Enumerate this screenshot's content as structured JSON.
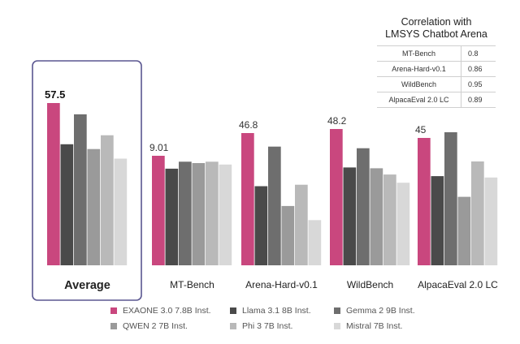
{
  "colors": {
    "exaone": "#c9477e",
    "llama": "#4a4a4a",
    "gemma": "#6e6e6e",
    "qwen": "#9a9a9a",
    "phi": "#b9b9b9",
    "mistral": "#d8d8d8",
    "highlight_box": "#5a5690"
  },
  "chart_data": {
    "type": "bar",
    "categories": [
      "Average",
      "MT-Bench",
      "Arena-Hard-v0.1",
      "WildBench",
      "AlpacaEval 2.0 LC"
    ],
    "highlighted_category": "Average",
    "series": [
      {
        "name": "EXAONE 3.0 7.8B Inst.",
        "key": "exaone",
        "values": [
          57.5,
          9.01,
          46.8,
          48.2,
          45
        ]
      },
      {
        "name": "Llama 3.1 8B Inst.",
        "key": "llama",
        "values": [
          42.9,
          7.95,
          28.0,
          34.6,
          31.5
        ]
      },
      {
        "name": "Gemma 2 9B Inst.",
        "key": "gemma",
        "values": [
          53.5,
          8.52,
          42.0,
          41.4,
          47.0
        ]
      },
      {
        "name": "QWEN 2 7B Inst.",
        "key": "qwen",
        "values": [
          41.2,
          8.41,
          21.0,
          34.3,
          24.2
        ]
      },
      {
        "name": "Phi 3 7B Inst.",
        "key": "phi",
        "values": [
          46.1,
          8.52,
          28.5,
          32.1,
          36.7
        ]
      },
      {
        "name": "Mistral 7B Inst.",
        "key": "mistral",
        "values": [
          37.8,
          8.29,
          16.0,
          29.2,
          31.0
        ]
      }
    ],
    "data_labels": [
      "57.5",
      "9.01",
      "46.8",
      "48.2",
      "45"
    ],
    "legend_placement": "bottom",
    "grid": false
  },
  "correlation_table": {
    "title_line1": "Correlation with",
    "title_line2": "LMSYS Chatbot Arena",
    "rows": [
      {
        "name": "MT-Bench",
        "value": "0.8"
      },
      {
        "name": "Arena-Hard-v0.1",
        "value": "0.86"
      },
      {
        "name": "WildBench",
        "value": "0.95"
      },
      {
        "name": "AlpacaEval 2.0 LC",
        "value": "0.89"
      }
    ]
  }
}
